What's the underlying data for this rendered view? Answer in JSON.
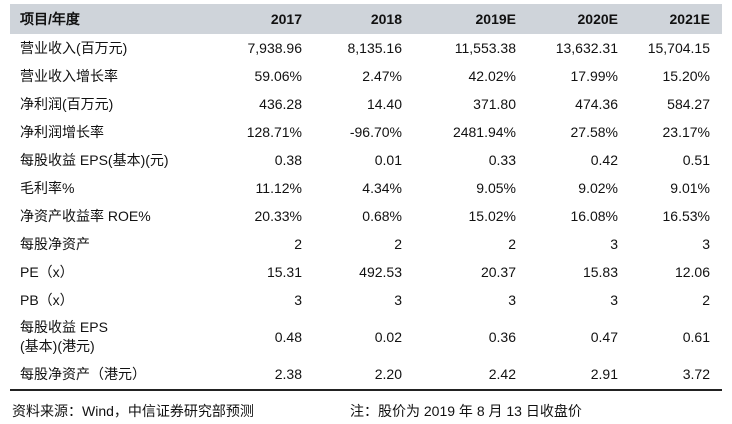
{
  "header": {
    "label": "项目/年度",
    "years": [
      "2017",
      "2018",
      "2019E",
      "2020E",
      "2021E"
    ]
  },
  "rows": [
    {
      "label": "营业收入(百万元)",
      "values": [
        "7,938.96",
        "8,135.16",
        "11,553.38",
        "13,632.31",
        "15,704.15"
      ]
    },
    {
      "label": "营业收入增长率",
      "values": [
        "59.06%",
        "2.47%",
        "42.02%",
        "17.99%",
        "15.20%"
      ]
    },
    {
      "label": "净利润(百万元)",
      "values": [
        "436.28",
        "14.40",
        "371.80",
        "474.36",
        "584.27"
      ]
    },
    {
      "label": "净利润增长率",
      "values": [
        "128.71%",
        "-96.70%",
        "2481.94%",
        "27.58%",
        "23.17%"
      ]
    },
    {
      "label": "每股收益 EPS(基本)(元)",
      "values": [
        "0.38",
        "0.01",
        "0.33",
        "0.42",
        "0.51"
      ]
    },
    {
      "label": "毛利率%",
      "values": [
        "11.12%",
        "4.34%",
        "9.05%",
        "9.02%",
        "9.01%"
      ]
    },
    {
      "label": "净资产收益率 ROE%",
      "values": [
        "20.33%",
        "0.68%",
        "15.02%",
        "16.08%",
        "16.53%"
      ]
    },
    {
      "label": "每股净资产",
      "values": [
        "2",
        "2",
        "2",
        "3",
        "3"
      ]
    },
    {
      "label": "PE（x）",
      "values": [
        "15.31",
        "492.53",
        "20.37",
        "15.83",
        "12.06"
      ]
    },
    {
      "label": "PB（x）",
      "values": [
        "3",
        "3",
        "3",
        "3",
        "2"
      ]
    },
    {
      "label": "每股收益 EPS\n(基本)(港元)",
      "values": [
        "0.48",
        "0.02",
        "0.36",
        "0.47",
        "0.61"
      ]
    },
    {
      "label": "每股净资产（港元）",
      "values": [
        "2.38",
        "2.20",
        "2.42",
        "2.91",
        "3.72"
      ]
    }
  ],
  "footer": {
    "source": "资料来源：Wind，中信证券研究部预测",
    "note": "注：股价为 2019 年 8 月 13 日收盘价"
  }
}
